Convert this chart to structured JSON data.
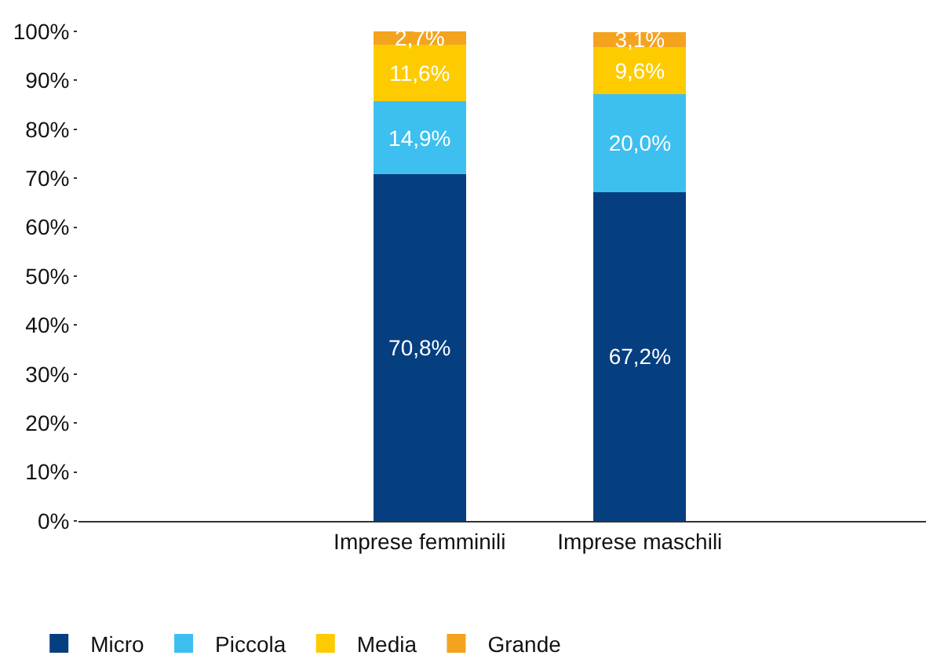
{
  "chart_data": {
    "type": "bar",
    "stacked": true,
    "categories": [
      "Imprese femminili",
      "Imprese maschili"
    ],
    "series": [
      {
        "name": "Micro",
        "color": "#063f80",
        "values": [
          70.8,
          67.2
        ],
        "value_labels": [
          "70,8%",
          "67,2%"
        ]
      },
      {
        "name": "Piccola",
        "color": "#3dbfef",
        "values": [
          14.9,
          20.0
        ],
        "value_labels": [
          "14,9%",
          "20,0%"
        ]
      },
      {
        "name": "Media",
        "color": "#fdcb00",
        "values": [
          11.6,
          9.6
        ],
        "value_labels": [
          "11,6%",
          "9,6%"
        ]
      },
      {
        "name": "Grande",
        "color": "#f4a31f",
        "values": [
          2.7,
          3.1
        ],
        "value_labels": [
          "2,7%",
          "3,1%"
        ]
      }
    ],
    "ylim": [
      0,
      100
    ],
    "yticks": [
      {
        "value": 0,
        "label": "0%"
      },
      {
        "value": 10,
        "label": "10%"
      },
      {
        "value": 20,
        "label": "20%"
      },
      {
        "value": 30,
        "label": "30%"
      },
      {
        "value": 40,
        "label": "40%"
      },
      {
        "value": 50,
        "label": "50%"
      },
      {
        "value": 60,
        "label": "60%"
      },
      {
        "value": 70,
        "label": "70%"
      },
      {
        "value": 80,
        "label": "80%"
      },
      {
        "value": 90,
        "label": "90%"
      },
      {
        "value": 100,
        "label": "100%"
      }
    ],
    "grid": false,
    "legend": "bottom left"
  }
}
